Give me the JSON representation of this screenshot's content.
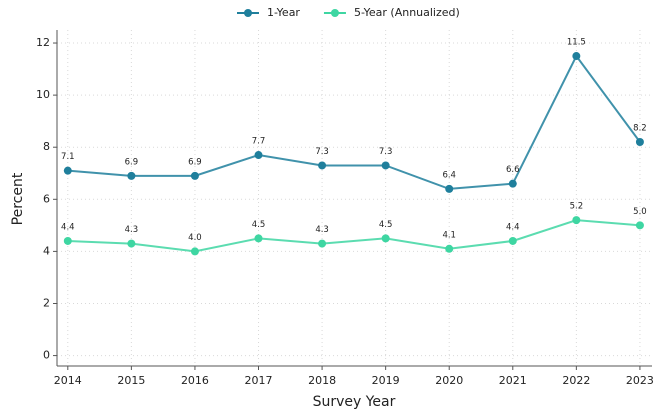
{
  "chart_data": {
    "type": "line",
    "x_label": "Survey Year",
    "y_label": "Percent",
    "x": [
      2014,
      2015,
      2016,
      2017,
      2018,
      2019,
      2020,
      2021,
      2022,
      2023
    ],
    "series": [
      {
        "name": "1-Year",
        "color": "#1f7f9c",
        "values": [
          7.1,
          6.9,
          6.9,
          7.7,
          7.3,
          7.3,
          6.4,
          6.6,
          11.5,
          8.2
        ],
        "value_labels": [
          "7.1",
          "6.9",
          "6.9",
          "7.7",
          "7.3",
          "7.3",
          "6.4",
          "6.6",
          "11.5",
          "8.2"
        ]
      },
      {
        "name": "5-Year (Annualized)",
        "color": "#3ed6a2",
        "values": [
          4.4,
          4.3,
          4.0,
          4.5,
          4.3,
          4.5,
          4.1,
          4.4,
          5.2,
          5.0
        ],
        "value_labels": [
          "4.4",
          "4.3",
          "4.0",
          "4.5",
          "4.3",
          "4.5",
          "4.1",
          "4.4",
          "5.2",
          "5.0"
        ]
      }
    ],
    "xlim": [
      2013.83,
      2023.19
    ],
    "xticks": [
      2014,
      2015,
      2016,
      2017,
      2018,
      2019,
      2020,
      2021,
      2022,
      2023
    ],
    "ylim": [
      -0.4,
      12.5
    ],
    "yticks": [
      0,
      2,
      4,
      6,
      8,
      10,
      12
    ],
    "grid": true,
    "legend": "top"
  }
}
